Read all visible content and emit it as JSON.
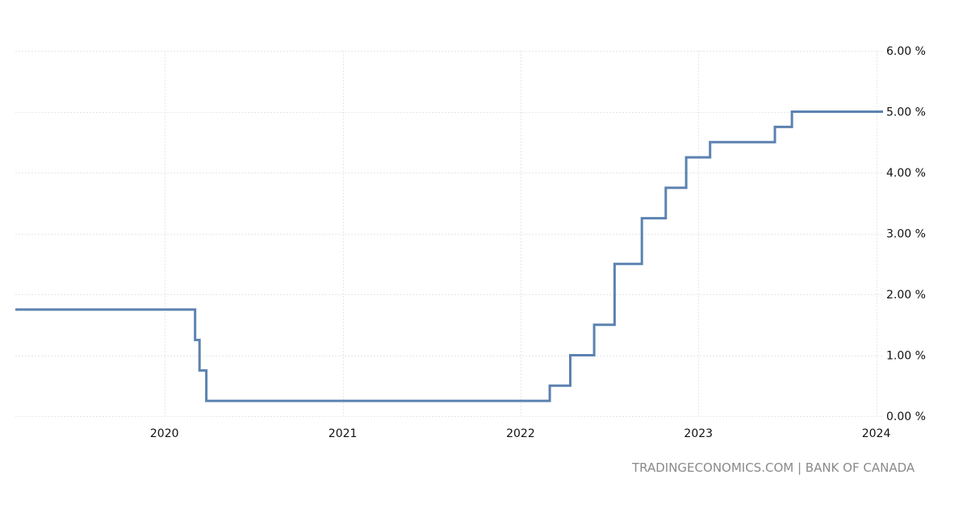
{
  "source_credit": "TRADINGECONOMICS.COM | BANK OF CANADA",
  "chart_data": {
    "type": "line",
    "step": true,
    "title": "",
    "xlabel": "",
    "ylabel": "",
    "color": "#5b82b0",
    "grid": true,
    "y_axis_position": "right",
    "ylim": [
      0,
      6
    ],
    "xlim": [
      "2019-03-01",
      "2024-01-15"
    ],
    "y_ticks": [
      {
        "value": 0,
        "label": "0.00 %"
      },
      {
        "value": 1,
        "label": "1.00 %"
      },
      {
        "value": 2,
        "label": "2.00 %"
      },
      {
        "value": 3,
        "label": "3.00 %"
      },
      {
        "value": 4,
        "label": "4.00 %"
      },
      {
        "value": 5,
        "label": "5.00 %"
      },
      {
        "value": 6,
        "label": "6.00 %"
      }
    ],
    "x_ticks": [
      {
        "value": "2020-01-01",
        "label": "2020"
      },
      {
        "value": "2021-01-01",
        "label": "2021"
      },
      {
        "value": "2022-01-01",
        "label": "2022"
      },
      {
        "value": "2023-01-01",
        "label": "2023"
      },
      {
        "value": "2024-01-01",
        "label": "2024"
      }
    ],
    "series": [
      {
        "points": [
          {
            "x": "2019-03-01",
            "y": 1.75
          },
          {
            "x": "2020-03-04",
            "y": 1.25
          },
          {
            "x": "2020-03-13",
            "y": 0.75
          },
          {
            "x": "2020-03-27",
            "y": 0.25
          },
          {
            "x": "2022-03-02",
            "y": 0.5
          },
          {
            "x": "2022-04-13",
            "y": 1.0
          },
          {
            "x": "2022-06-01",
            "y": 1.5
          },
          {
            "x": "2022-07-13",
            "y": 2.5
          },
          {
            "x": "2022-09-07",
            "y": 3.25
          },
          {
            "x": "2022-10-26",
            "y": 3.75
          },
          {
            "x": "2022-12-07",
            "y": 4.25
          },
          {
            "x": "2023-01-25",
            "y": 4.5
          },
          {
            "x": "2023-06-07",
            "y": 4.75
          },
          {
            "x": "2023-07-12",
            "y": 5.0
          },
          {
            "x": "2024-01-15",
            "y": 5.0
          }
        ]
      }
    ]
  }
}
